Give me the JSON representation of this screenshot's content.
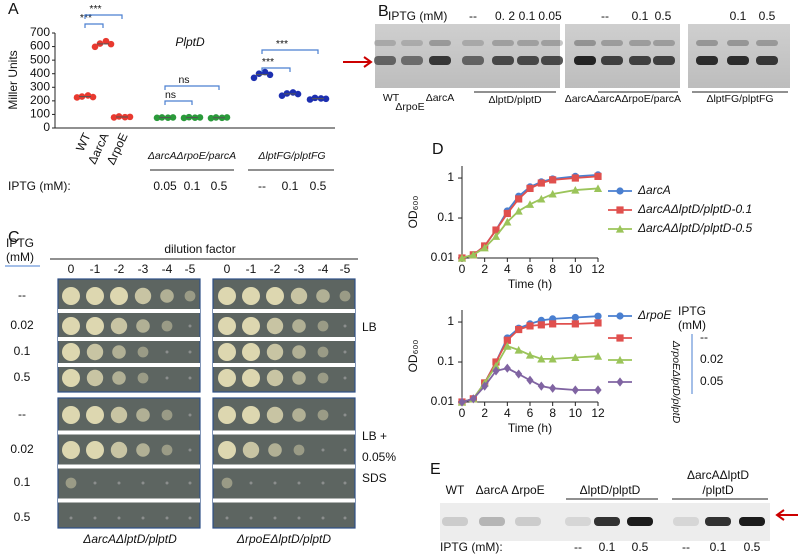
{
  "panel_labels": [
    "A",
    "B",
    "C",
    "D",
    "E"
  ],
  "chart_data": [
    {
      "type": "dot",
      "title": "PlptD",
      "ylabel": "Miller Units",
      "ylim": [
        0,
        700
      ],
      "yticks": [
        0,
        100,
        200,
        300,
        400,
        500,
        600,
        700
      ],
      "groups": [
        {
          "label": "WT",
          "color": "#e8392f",
          "values": [
            225,
            232,
            240,
            228
          ]
        },
        {
          "label": "ΔarcA",
          "color": "#e8392f",
          "values": [
            598,
            622,
            640,
            618
          ]
        },
        {
          "label": "ΔrpoE",
          "color": "#e8392f",
          "values": [
            78,
            85,
            80,
            82
          ]
        },
        {
          "iptg": "0.05",
          "color": "#2a9a3a",
          "values": [
            75,
            78,
            76,
            78
          ]
        },
        {
          "iptg": "0.1",
          "color": "#2a9a3a",
          "values": [
            74,
            80,
            76,
            78
          ]
        },
        {
          "iptg": "0.5",
          "color": "#2a9a3a",
          "values": [
            72,
            78,
            75,
            78
          ]
        },
        {
          "iptg": "--",
          "color": "#1d2fb0",
          "values": [
            370,
            400,
            412,
            392
          ]
        },
        {
          "iptg": "0.1",
          "color": "#1d2fb0",
          "values": [
            238,
            255,
            262,
            250
          ]
        },
        {
          "iptg": "0.5",
          "color": "#1d2fb0",
          "values": [
            210,
            222,
            218,
            215
          ]
        }
      ],
      "strain_groups": [
        "ΔarcAΔrpoE/parcA",
        "ΔlptFG/plptFG"
      ],
      "iptg_label": "IPTG (mM):",
      "significance": [
        "***",
        "***",
        "ns",
        "ns",
        "***",
        "***"
      ]
    },
    {
      "type": "line",
      "log_y": true,
      "ylabel": "OD₆₀₀",
      "xlabel": "Time (h)",
      "xlim": [
        0,
        12
      ],
      "xticks": [
        0,
        2,
        4,
        6,
        8,
        10,
        12
      ],
      "ylim": [
        0.01,
        2
      ],
      "yticks": [
        0.01,
        0.1,
        1
      ],
      "x": [
        0,
        1,
        2,
        3,
        4,
        5,
        6,
        7,
        8,
        10,
        12
      ],
      "series": [
        {
          "name": "ΔarcA",
          "color": "#4a7fd0",
          "marker": "circle",
          "values": [
            0.01,
            0.012,
            0.02,
            0.05,
            0.15,
            0.35,
            0.6,
            0.8,
            0.95,
            1.1,
            1.2
          ]
        },
        {
          "name": "ΔarcAΔlptD/plptD-0.1",
          "color": "#e0504e",
          "marker": "square",
          "values": [
            0.01,
            0.012,
            0.02,
            0.05,
            0.13,
            0.3,
            0.55,
            0.75,
            0.9,
            1.0,
            1.1
          ]
        },
        {
          "name": "ΔarcAΔlptD/plptD-0.5",
          "color": "#9bc45a",
          "marker": "triangle",
          "values": [
            0.01,
            0.012,
            0.018,
            0.035,
            0.08,
            0.15,
            0.22,
            0.3,
            0.4,
            0.5,
            0.55
          ]
        }
      ]
    },
    {
      "type": "line",
      "log_y": true,
      "ylabel": "OD₆₀₀",
      "xlabel": "Time (h)",
      "xlim": [
        0,
        12
      ],
      "xticks": [
        0,
        2,
        4,
        6,
        8,
        10,
        12
      ],
      "ylim": [
        0.01,
        2
      ],
      "yticks": [
        0.01,
        0.1,
        1
      ],
      "x": [
        0,
        1,
        2,
        3,
        4,
        5,
        6,
        7,
        8,
        10,
        12
      ],
      "legend_title": [
        "IPTG",
        "(mM)"
      ],
      "legend_group": "ΔrpoEΔlptD/plptD",
      "series": [
        {
          "name": "ΔrpoE",
          "color": "#4a7fd0",
          "marker": "circle",
          "values": [
            0.01,
            0.012,
            0.03,
            0.1,
            0.4,
            0.7,
            0.9,
            1.1,
            1.2,
            1.3,
            1.4
          ]
        },
        {
          "name": "--",
          "color": "#e0504e",
          "marker": "square",
          "values": [
            0.01,
            0.012,
            0.03,
            0.1,
            0.35,
            0.65,
            0.8,
            0.85,
            0.9,
            0.9,
            0.95
          ]
        },
        {
          "name": "0.02",
          "color": "#9bc45a",
          "marker": "triangle",
          "values": [
            0.01,
            0.012,
            0.03,
            0.08,
            0.25,
            0.2,
            0.15,
            0.12,
            0.12,
            0.13,
            0.14
          ]
        },
        {
          "name": "0.05",
          "color": "#8064a2",
          "marker": "diamond",
          "values": [
            0.01,
            0.012,
            0.025,
            0.06,
            0.07,
            0.05,
            0.035,
            0.025,
            0.022,
            0.02,
            0.02
          ]
        }
      ]
    }
  ],
  "panel_b": {
    "iptg_label": "IPTG (mM)",
    "lanes": [
      "--",
      "0. 2",
      "0.1",
      "0.05",
      "--",
      "0.1",
      "0.5",
      "0.1",
      "0.5"
    ],
    "strains": [
      "WT",
      "ΔrpoE",
      "ΔarcA",
      "ΔlptD/plptD",
      "ΔarcA",
      "ΔarcAΔrpoE/parcA",
      "ΔlptFG/plptFG"
    ]
  },
  "panel_c": {
    "iptg_label": [
      "IPTG",
      "(mM)"
    ],
    "dilution_title": "dilution factor",
    "dilutions": [
      "0",
      "-1",
      "-2",
      "-3",
      "-4",
      "-5"
    ],
    "rows": [
      "--",
      "0.02",
      "0.1",
      "0.5"
    ],
    "media": [
      [
        "LB"
      ],
      [
        "LB +",
        "0.05%",
        "SDS"
      ]
    ],
    "strains": [
      "ΔarcAΔlptD/plptD",
      "ΔrpoEΔlptD/plptD"
    ]
  },
  "panel_e": {
    "strains": [
      "WT",
      "ΔarcA",
      "ΔrpoE",
      "ΔlptD/plptD"
    ],
    "strain_last": [
      "ΔarcAΔlptD",
      "/plptD"
    ],
    "iptg_label": "IPTG (mM):",
    "lanes": [
      "--",
      "0.1",
      "0.5",
      "--",
      "0.1",
      "0.5"
    ]
  }
}
